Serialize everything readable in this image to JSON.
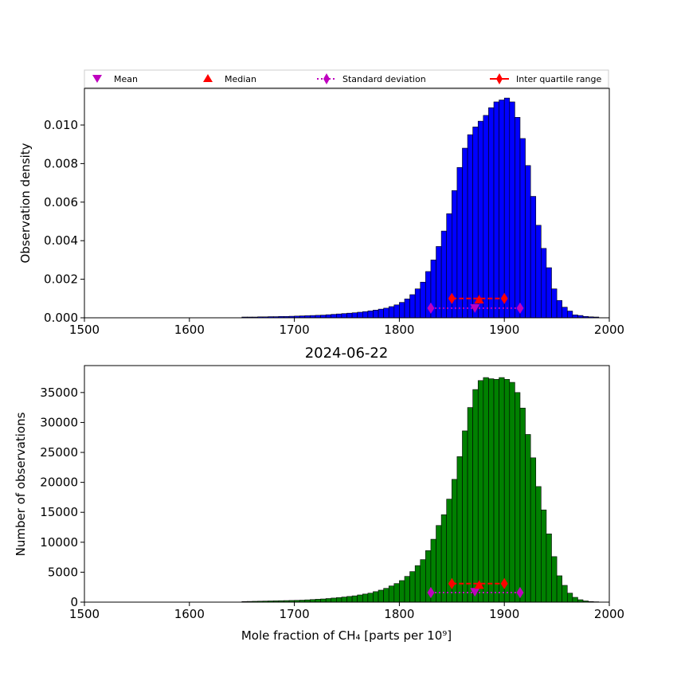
{
  "title": "2024-06-22",
  "legend": {
    "mean": "Mean",
    "median": "Median",
    "std": "Standard deviation",
    "iqr": "Inter quartile range"
  },
  "colors": {
    "density_bars": "#0000ff",
    "count_bars": "#008000",
    "mean": "#bf00bf",
    "median": "#ff0000",
    "std": "#bf00bf",
    "iqr": "#ff0000"
  },
  "chart_data": [
    {
      "type": "bar",
      "panel": "top",
      "ylabel": "Observation density",
      "xlim": [
        1500,
        2000
      ],
      "ylim": [
        0,
        0.0119
      ],
      "xticks": [
        "1500",
        "1600",
        "1700",
        "1800",
        "1900",
        "2000"
      ],
      "yticks": [
        "0.000",
        "0.002",
        "0.004",
        "0.006",
        "0.008",
        "0.010"
      ],
      "bin_width": 5,
      "bin_starts": [
        1650,
        1655,
        1660,
        1665,
        1670,
        1675,
        1680,
        1685,
        1690,
        1695,
        1700,
        1705,
        1710,
        1715,
        1720,
        1725,
        1730,
        1735,
        1740,
        1745,
        1750,
        1755,
        1760,
        1765,
        1770,
        1775,
        1780,
        1785,
        1790,
        1795,
        1800,
        1805,
        1810,
        1815,
        1820,
        1825,
        1830,
        1835,
        1840,
        1845,
        1850,
        1855,
        1860,
        1865,
        1870,
        1875,
        1880,
        1885,
        1890,
        1895,
        1900,
        1905,
        1910,
        1915,
        1920,
        1925,
        1930,
        1935,
        1940,
        1945,
        1950,
        1955,
        1960,
        1965,
        1970,
        1975,
        1980,
        1985
      ],
      "values": [
        4e-05,
        4e-05,
        4e-05,
        5e-05,
        5e-05,
        6e-05,
        6e-05,
        7e-05,
        7e-05,
        8e-05,
        9e-05,
        0.0001,
        0.00011,
        0.00012,
        0.00013,
        0.00014,
        0.00016,
        0.00018,
        0.0002,
        0.00022,
        0.00024,
        0.00026,
        0.00029,
        0.00032,
        0.00036,
        0.0004,
        0.00045,
        0.0005,
        0.00058,
        0.00067,
        0.0008,
        0.00098,
        0.0012,
        0.0015,
        0.00185,
        0.0024,
        0.003,
        0.0037,
        0.0045,
        0.0054,
        0.0066,
        0.0078,
        0.0088,
        0.0095,
        0.0099,
        0.0102,
        0.0105,
        0.0109,
        0.0112,
        0.0113,
        0.0114,
        0.0112,
        0.0104,
        0.0093,
        0.0079,
        0.0063,
        0.0048,
        0.0036,
        0.0026,
        0.0015,
        0.0009,
        0.00055,
        0.00035,
        0.00015,
        0.00012,
        7e-05,
        5e-05,
        4e-05
      ],
      "stats": {
        "mean": 1872,
        "mean_y": 0.0005,
        "median": 1876,
        "median_y": 0.00095,
        "std": [
          1830,
          1915
        ],
        "std_y": 0.0005,
        "iqr": [
          1850,
          1900
        ],
        "iqr_y": 0.001
      }
    },
    {
      "type": "bar",
      "panel": "bottom",
      "title": "2024-06-22",
      "xlabel": "Mole fraction of CH₄ [parts per 10⁹]",
      "ylabel": "Number of observations",
      "xlim": [
        1500,
        2000
      ],
      "ylim": [
        0,
        39500
      ],
      "xticks": [
        "1500",
        "1600",
        "1700",
        "1800",
        "1900",
        "2000"
      ],
      "yticks": [
        "0",
        "5000",
        "10000",
        "15000",
        "20000",
        "25000",
        "30000",
        "35000"
      ],
      "bin_width": 5,
      "bin_starts": [
        1650,
        1655,
        1660,
        1665,
        1670,
        1675,
        1680,
        1685,
        1690,
        1695,
        1700,
        1705,
        1710,
        1715,
        1720,
        1725,
        1730,
        1735,
        1740,
        1745,
        1750,
        1755,
        1760,
        1765,
        1770,
        1775,
        1780,
        1785,
        1790,
        1795,
        1800,
        1805,
        1810,
        1815,
        1820,
        1825,
        1830,
        1835,
        1840,
        1845,
        1850,
        1855,
        1860,
        1865,
        1870,
        1875,
        1880,
        1885,
        1890,
        1895,
        1900,
        1905,
        1910,
        1915,
        1920,
        1925,
        1930,
        1935,
        1940,
        1945,
        1950,
        1955,
        1960,
        1965,
        1970,
        1975,
        1980,
        1985
      ],
      "values": [
        100,
        120,
        140,
        160,
        180,
        200,
        220,
        240,
        260,
        280,
        300,
        330,
        380,
        430,
        480,
        530,
        600,
        680,
        760,
        850,
        950,
        1050,
        1200,
        1350,
        1500,
        1750,
        2000,
        2300,
        2700,
        3100,
        3600,
        4300,
        5100,
        6100,
        7100,
        8600,
        10500,
        12800,
        14600,
        17200,
        20500,
        24300,
        28600,
        32500,
        35500,
        37000,
        37500,
        37300,
        37200,
        37500,
        37200,
        36700,
        35000,
        32400,
        28000,
        24100,
        19300,
        15400,
        11400,
        7600,
        4400,
        2800,
        1500,
        800,
        400,
        200,
        100,
        60
      ],
      "stats": {
        "mean": 1872,
        "mean_y": 1700,
        "median": 1876,
        "median_y": 2900,
        "std": [
          1830,
          1915
        ],
        "std_y": 1600,
        "iqr": [
          1850,
          1900
        ],
        "iqr_y": 3100
      }
    }
  ]
}
